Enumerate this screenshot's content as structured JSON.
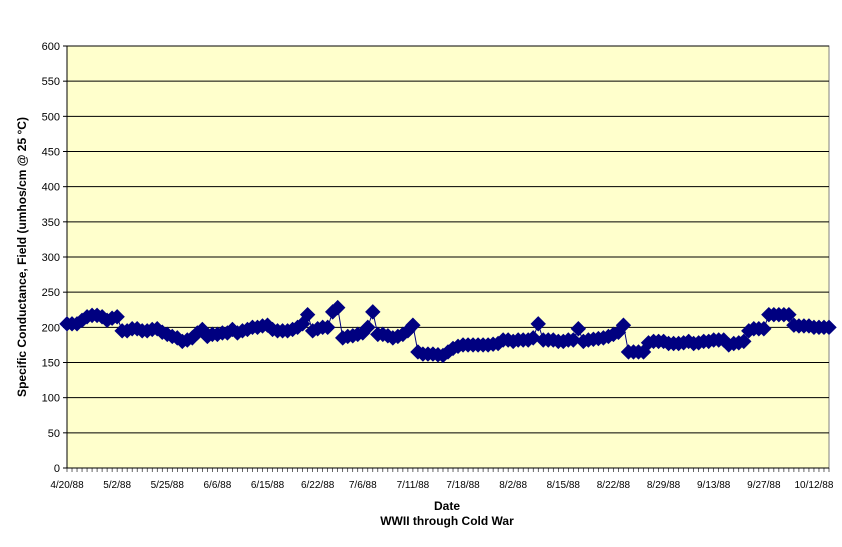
{
  "chart_data": {
    "type": "line",
    "xlabel": "Date",
    "subtitle": "WWII through Cold War",
    "ylabel": "Specific Conductance, Field (umhos/cm @ 25 °C)",
    "ylim": [
      0,
      600
    ],
    "ytick_step": 50,
    "grid": true,
    "legend": "none",
    "x_tick_labels": [
      "4/20/88",
      "5/2/88",
      "5/25/88",
      "6/6/88",
      "6/15/88",
      "6/22/88",
      "7/6/88",
      "7/11/88",
      "7/18/88",
      "8/2/88",
      "8/15/88",
      "8/22/88",
      "8/29/88",
      "9/13/88",
      "9/27/88",
      "10/12/88"
    ],
    "series": [
      {
        "values": [
          205,
          205,
          205,
          210,
          215,
          217,
          217,
          215,
          210,
          213,
          215,
          195,
          195,
          198,
          198,
          195,
          195,
          197,
          198,
          193,
          190,
          187,
          185,
          180,
          182,
          185,
          192,
          197,
          187,
          190,
          190,
          192,
          192,
          197,
          192,
          195,
          197,
          200,
          200,
          202,
          203,
          197,
          195,
          195,
          195,
          197,
          200,
          205,
          218,
          195,
          198,
          200,
          200,
          222,
          228,
          185,
          187,
          188,
          190,
          192,
          200,
          222,
          190,
          190,
          188,
          185,
          187,
          190,
          195,
          203,
          165,
          162,
          162,
          162,
          161,
          160,
          165,
          170,
          173,
          175,
          175,
          175,
          175,
          175,
          175,
          176,
          177,
          182,
          182,
          180,
          182,
          182,
          182,
          185,
          205,
          182,
          182,
          182,
          180,
          180,
          182,
          182,
          198,
          180,
          182,
          183,
          184,
          185,
          187,
          190,
          193,
          203,
          165,
          165,
          165,
          165,
          178,
          180,
          180,
          180,
          177,
          177,
          177,
          178,
          180,
          177,
          178,
          180,
          180,
          182,
          182,
          182,
          175,
          177,
          178,
          180,
          195,
          198,
          198,
          198,
          218,
          218,
          218,
          218,
          218,
          203,
          202,
          202,
          202,
          200,
          200,
          200,
          200
        ]
      }
    ]
  },
  "colors": {
    "plot_background": "#ffffcc",
    "marker": "#000080",
    "line": "#000080",
    "gridline": "#000000"
  }
}
